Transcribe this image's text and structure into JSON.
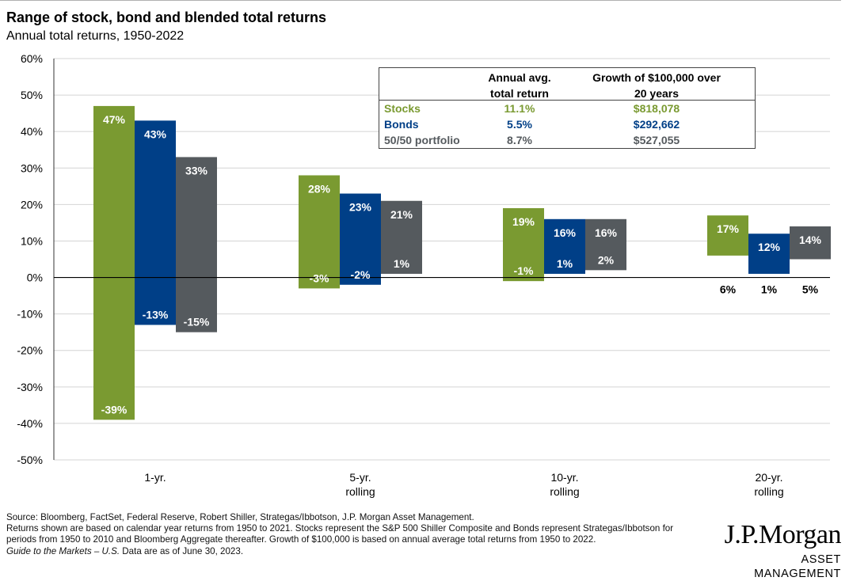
{
  "header": {
    "title": "Range of stock, bond and blended total returns",
    "subtitle": "Annual total returns, 1950-2022"
  },
  "colors": {
    "stocks": "#7a9a31",
    "bonds": "#003f87",
    "blend": "#555a5e",
    "grid": "#d4d4d4"
  },
  "chart_data": {
    "type": "bar",
    "variant": "floating-range",
    "ylim": [
      -50,
      60
    ],
    "yticks": [
      60,
      50,
      40,
      30,
      20,
      10,
      0,
      -10,
      -20,
      -30,
      -40,
      -50
    ],
    "ytick_labels": [
      "60%",
      "50%",
      "40%",
      "30%",
      "20%",
      "10%",
      "0%",
      "-10%",
      "-20%",
      "-30%",
      "-40%",
      "-50%"
    ],
    "grid": true,
    "categories": [
      {
        "line1": "1-yr.",
        "line2": ""
      },
      {
        "line1": "5-yr.",
        "line2": "rolling"
      },
      {
        "line1": "10-yr.",
        "line2": "rolling"
      },
      {
        "line1": "20-yr.",
        "line2": "rolling"
      }
    ],
    "series": [
      {
        "key": "stocks",
        "high": [
          47,
          28,
          19,
          17
        ],
        "low": [
          -39,
          -3,
          -1,
          6
        ],
        "high_labels": [
          "47%",
          "28%",
          "19%",
          "17%"
        ],
        "low_labels": [
          "-39%",
          "-3%",
          "-1%",
          "6%"
        ]
      },
      {
        "key": "bonds",
        "high": [
          43,
          23,
          16,
          12
        ],
        "low": [
          -13,
          -2,
          1,
          1
        ],
        "high_labels": [
          "43%",
          "23%",
          "16%",
          "12%"
        ],
        "low_labels": [
          "-13%",
          "-2%",
          "1%",
          "1%"
        ]
      },
      {
        "key": "blend",
        "high": [
          33,
          21,
          16,
          14
        ],
        "low": [
          -15,
          1,
          2,
          5
        ],
        "high_labels": [
          "33%",
          "21%",
          "16%",
          "14%"
        ],
        "low_labels": [
          "-15%",
          "1%",
          "2%",
          "5%"
        ]
      }
    ]
  },
  "summary_table": {
    "col1_line1": "Annual avg.",
    "col1_line2": "total return",
    "col2_line1": "Growth of $100,000 over",
    "col2_line2": "20 years",
    "rows": [
      {
        "label": "Stocks",
        "avg": "11.1%",
        "growth": "$818,078",
        "color": "#7a9a31"
      },
      {
        "label": "Bonds",
        "avg": "5.5%",
        "growth": "$292,662",
        "color": "#003f87"
      },
      {
        "label": "50/50 portfolio",
        "avg": "8.7%",
        "growth": "$527,055",
        "color": "#555a5e"
      }
    ]
  },
  "footer": {
    "source_line1": "Source: Bloomberg, FactSet, Federal Reserve, Robert Shiller, Strategas/Ibbotson, J.P. Morgan Asset Management.",
    "source_line2": "Returns shown are based on calendar year returns from 1950 to 2021. Stocks represent the S&P 500 Shiller Composite and Bonds represent Strategas/Ibbotson for periods from 1950 to 2010 and Bloomberg Aggregate thereafter. Growth of $100,000 is based on annual average total returns from 1950 to 2022.",
    "guide": "Guide to the Markets – U.S.",
    "as_of": " Data are as of June 30, 2023."
  },
  "logo": {
    "main": "J.P.Morgan",
    "sub": "ASSET MANAGEMENT"
  }
}
